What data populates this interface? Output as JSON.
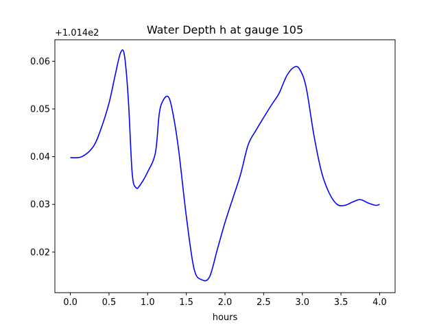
{
  "chart_data": {
    "type": "line",
    "title": "Water Depth h at gauge 105",
    "xlabel": "hours",
    "ylabel": "",
    "y_offset_label": "+1.014e2",
    "xlim": [
      -0.2,
      4.2
    ],
    "ylim": [
      0.0115,
      0.0645
    ],
    "x_ticks": [
      0.0,
      0.5,
      1.0,
      1.5,
      2.0,
      2.5,
      3.0,
      3.5,
      4.0
    ],
    "x_tick_labels": [
      "0.0",
      "0.5",
      "1.0",
      "1.5",
      "2.0",
      "2.5",
      "3.0",
      "3.5",
      "4.0"
    ],
    "y_ticks": [
      0.02,
      0.03,
      0.04,
      0.05,
      0.06
    ],
    "y_tick_labels": [
      "0.02",
      "0.03",
      "0.04",
      "0.05",
      "0.06"
    ],
    "grid": false,
    "series": [
      {
        "color": "#0000ff",
        "x": [
          0.0,
          0.15,
          0.3,
          0.4,
          0.5,
          0.58,
          0.65,
          0.7,
          0.75,
          0.8,
          0.85,
          0.9,
          1.0,
          1.1,
          1.15,
          1.2,
          1.27,
          1.33,
          1.4,
          1.5,
          1.6,
          1.7,
          1.8,
          1.9,
          2.0,
          2.1,
          2.2,
          2.3,
          2.4,
          2.5,
          2.6,
          2.7,
          2.8,
          2.9,
          2.97,
          3.05,
          3.15,
          3.25,
          3.35,
          3.45,
          3.55,
          3.65,
          3.75,
          3.85,
          3.95,
          4.0
        ],
        "y": [
          0.0398,
          0.04,
          0.0422,
          0.046,
          0.0512,
          0.0571,
          0.0618,
          0.0612,
          0.052,
          0.0365,
          0.0335,
          0.034,
          0.0368,
          0.0408,
          0.049,
          0.0518,
          0.0525,
          0.0488,
          0.0415,
          0.0275,
          0.0165,
          0.0142,
          0.0148,
          0.0205,
          0.0262,
          0.0312,
          0.0362,
          0.0425,
          0.0455,
          0.0482,
          0.0508,
          0.0533,
          0.057,
          0.0588,
          0.0582,
          0.0545,
          0.0445,
          0.0367,
          0.0323,
          0.03,
          0.0298,
          0.0305,
          0.031,
          0.0303,
          0.0298,
          0.03
        ]
      }
    ]
  }
}
